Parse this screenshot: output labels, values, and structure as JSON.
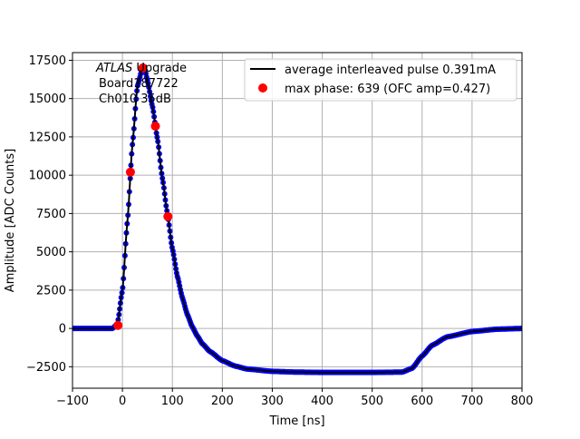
{
  "chart_data": {
    "type": "line",
    "xlabel": "Time [ns]",
    "ylabel": "Amplitude [ADC Counts]",
    "xlim": [
      -100,
      800
    ],
    "ylim": [
      -3900,
      18000
    ],
    "xticks": [
      -100,
      0,
      100,
      200,
      300,
      400,
      500,
      600,
      700,
      800
    ],
    "yticks": [
      -2500,
      0,
      2500,
      5000,
      7500,
      10000,
      12500,
      15000,
      17500
    ],
    "grid": true,
    "legend_placement": "top-right",
    "annotation": {
      "italic": "ATLAS",
      "lines": [
        " Upgrade",
        "Board187722",
        "Ch010 35dB"
      ]
    },
    "colors": {
      "pulse": "#000000",
      "samples": "#0000ff",
      "max_phase": "#ff0000",
      "grid": "#b0b0b0"
    },
    "series": [
      {
        "name": "average interleaved pulse 0.391mA",
        "style": "line with blue sample dots",
        "x": [
          -100,
          -20,
          -10,
          0,
          10,
          20,
          30,
          40,
          45,
          50,
          60,
          70,
          80,
          90,
          100,
          110,
          120,
          130,
          140,
          150,
          160,
          175,
          200,
          225,
          250,
          300,
          350,
          400,
          500,
          560,
          580,
          600,
          620,
          650,
          700,
          750,
          800
        ],
        "y": [
          0,
          0,
          300,
          2500,
          7000,
          12000,
          15800,
          17000,
          16900,
          16200,
          14500,
          12400,
          9800,
          7500,
          5200,
          3400,
          2000,
          900,
          100,
          -500,
          -1000,
          -1500,
          -2100,
          -2450,
          -2650,
          -2800,
          -2850,
          -2870,
          -2870,
          -2850,
          -2600,
          -1800,
          -1100,
          -550,
          -200,
          -50,
          0
        ]
      },
      {
        "name": "max phase: 639 (OFC amp=0.427)",
        "style": "markers",
        "x": [
          -9,
          16,
          41,
          66,
          91
        ],
        "y": [
          200,
          10200,
          17000,
          13200,
          7300
        ]
      }
    ]
  }
}
